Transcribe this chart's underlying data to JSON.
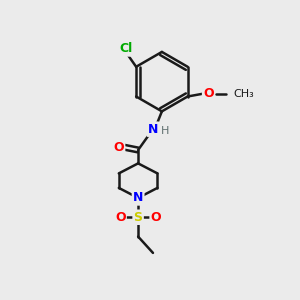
{
  "bg_color": "#ebebeb",
  "bond_color": "#1a1a1a",
  "bond_lw": 1.8,
  "atom_colors": {
    "N": "#0000ff",
    "O": "#ff0000",
    "S": "#cccc00",
    "Cl": "#00aa00",
    "H": "#607070"
  },
  "font_size": 9,
  "font_size_small": 8
}
